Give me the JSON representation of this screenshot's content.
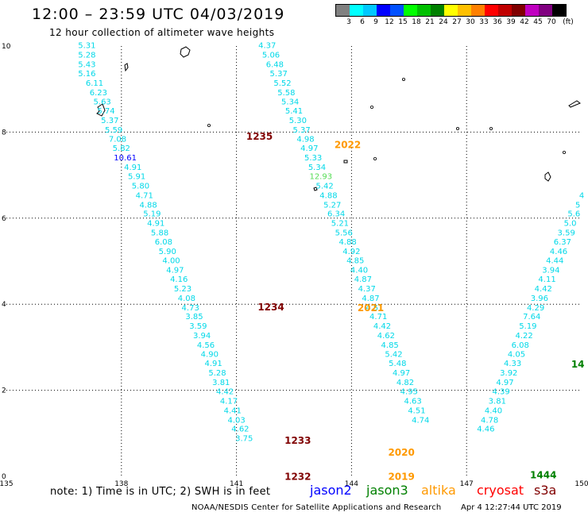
{
  "header": {
    "title": "12:00 – 23:59 UTC 04/03/2019",
    "subtitle": "12 hour collection of altimeter wave heights"
  },
  "legend": {
    "colors": [
      "#808080",
      "#00ffff",
      "#00c8ff",
      "#0000ff",
      "#0050ff",
      "#00ff00",
      "#00c000",
      "#008000",
      "#ffff00",
      "#ffc000",
      "#ff8000",
      "#ff0000",
      "#c00000",
      "#800000",
      "#c000c0",
      "#800080",
      "#000000"
    ],
    "labels": [
      "3",
      "6",
      "9",
      "12",
      "15",
      "18",
      "21",
      "24",
      "27",
      "30",
      "33",
      "36",
      "39",
      "42",
      "45",
      "70",
      "(ft)"
    ]
  },
  "map": {
    "lon_ticks": [
      "135",
      "138",
      "141",
      "144",
      "147",
      "150"
    ],
    "lat_ticks": [
      "10",
      "8",
      "6",
      "4",
      "2",
      "0"
    ],
    "lon_range": [
      135,
      150
    ],
    "lat_range": [
      0,
      10
    ],
    "tracks": [
      {
        "times": [
          {
            "label": "1235",
            "lon": 141.6,
            "lat": 7.82,
            "color": "#800000"
          },
          {
            "label": "1234",
            "lon": 141.9,
            "lat": 3.86,
            "color": "#800000"
          },
          {
            "label": "1233",
            "lon": 142.6,
            "lat": 0.76,
            "color": "#800000"
          },
          {
            "label": "1232",
            "lon": 142.6,
            "lat": -0.08,
            "color": "#800000"
          }
        ],
        "points": [
          {
            "v": "5.31",
            "lon": 137.1,
            "lat": 9.95,
            "c": "#00d8e8"
          },
          {
            "v": "5.28",
            "lon": 137.1,
            "lat": 9.73,
            "c": "#00d8e8"
          },
          {
            "v": "5.43",
            "lon": 137.1,
            "lat": 9.51,
            "c": "#00d8e8"
          },
          {
            "v": "5.16",
            "lon": 137.1,
            "lat": 9.3,
            "c": "#00d8e8"
          },
          {
            "v": "6.11",
            "lon": 137.3,
            "lat": 9.08,
            "c": "#00d8e8"
          },
          {
            "v": "6.23",
            "lon": 137.4,
            "lat": 8.86,
            "c": "#00d8e8"
          },
          {
            "v": "5.63",
            "lon": 137.5,
            "lat": 8.64,
            "c": "#00d8e8"
          },
          {
            "v": "5.74",
            "lon": 137.6,
            "lat": 8.43,
            "c": "#00d8e8"
          },
          {
            "v": "5.37",
            "lon": 137.7,
            "lat": 8.21,
            "c": "#00d8e8"
          },
          {
            "v": "5.59",
            "lon": 137.8,
            "lat": 7.99,
            "c": "#00d8e8"
          },
          {
            "v": "7.08",
            "lon": 137.9,
            "lat": 7.78,
            "c": "#00d8e8"
          },
          {
            "v": "5.82",
            "lon": 138.0,
            "lat": 7.56,
            "c": "#00d8e8"
          },
          {
            "v": "10.61",
            "lon": 138.1,
            "lat": 7.34,
            "c": "#0000ff"
          },
          {
            "v": "4.91",
            "lon": 138.3,
            "lat": 7.12,
            "c": "#00d8e8"
          },
          {
            "v": "5.91",
            "lon": 138.4,
            "lat": 6.91,
            "c": "#00d8e8"
          },
          {
            "v": "5.80",
            "lon": 138.5,
            "lat": 6.69,
            "c": "#00d8e8"
          },
          {
            "v": "4.71",
            "lon": 138.6,
            "lat": 6.47,
            "c": "#00d8e8"
          },
          {
            "v": "4.88",
            "lon": 138.7,
            "lat": 6.25,
            "c": "#00d8e8"
          },
          {
            "v": "5.19",
            "lon": 138.8,
            "lat": 6.04,
            "c": "#00d8e8"
          },
          {
            "v": "4.91",
            "lon": 138.9,
            "lat": 5.82,
            "c": "#00d8e8"
          },
          {
            "v": "5.88",
            "lon": 139.0,
            "lat": 5.6,
            "c": "#00d8e8"
          },
          {
            "v": "6.08",
            "lon": 139.1,
            "lat": 5.39,
            "c": "#00d8e8"
          },
          {
            "v": "5.90",
            "lon": 139.2,
            "lat": 5.17,
            "c": "#00d8e8"
          },
          {
            "v": "4.00",
            "lon": 139.3,
            "lat": 4.95,
            "c": "#00d8e8"
          },
          {
            "v": "4.97",
            "lon": 139.4,
            "lat": 4.73,
            "c": "#00d8e8"
          },
          {
            "v": "4.16",
            "lon": 139.5,
            "lat": 4.52,
            "c": "#00d8e8"
          },
          {
            "v": "5.23",
            "lon": 139.6,
            "lat": 4.3,
            "c": "#00d8e8"
          },
          {
            "v": "4.08",
            "lon": 139.7,
            "lat": 4.08,
            "c": "#00d8e8"
          },
          {
            "v": "4.73",
            "lon": 139.8,
            "lat": 3.86,
            "c": "#00d8e8"
          },
          {
            "v": "3.85",
            "lon": 139.9,
            "lat": 3.65,
            "c": "#00d8e8"
          },
          {
            "v": "3.59",
            "lon": 140.0,
            "lat": 3.43,
            "c": "#00d8e8"
          },
          {
            "v": "3.94",
            "lon": 140.1,
            "lat": 3.21,
            "c": "#00d8e8"
          },
          {
            "v": "4.56",
            "lon": 140.2,
            "lat": 2.99,
            "c": "#00d8e8"
          },
          {
            "v": "4.90",
            "lon": 140.3,
            "lat": 2.78,
            "c": "#00d8e8"
          },
          {
            "v": "4.91",
            "lon": 140.4,
            "lat": 2.56,
            "c": "#00d8e8"
          },
          {
            "v": "5.28",
            "lon": 140.5,
            "lat": 2.34,
            "c": "#00d8e8"
          },
          {
            "v": "3.81",
            "lon": 140.6,
            "lat": 2.12,
            "c": "#00d8e8"
          },
          {
            "v": "4.42",
            "lon": 140.7,
            "lat": 1.91,
            "c": "#00d8e8"
          },
          {
            "v": "4.17",
            "lon": 140.8,
            "lat": 1.69,
            "c": "#00d8e8"
          },
          {
            "v": "4.41",
            "lon": 140.9,
            "lat": 1.47,
            "c": "#00d8e8"
          },
          {
            "v": "4.03",
            "lon": 141.0,
            "lat": 1.25,
            "c": "#00d8e8"
          },
          {
            "v": "4.62",
            "lon": 141.1,
            "lat": 1.04,
            "c": "#00d8e8"
          },
          {
            "v": "3.75",
            "lon": 141.2,
            "lat": 0.82,
            "c": "#00d8e8"
          }
        ]
      },
      {
        "times": [
          {
            "label": "2022",
            "lon": 143.9,
            "lat": 7.63,
            "color": "#ff9900"
          },
          {
            "label": "2021",
            "lon": 144.5,
            "lat": 3.84,
            "color": "#ff9900"
          },
          {
            "label": "2020",
            "lon": 145.3,
            "lat": 0.48,
            "color": "#ff9900"
          },
          {
            "label": "2019",
            "lon": 145.3,
            "lat": -0.08,
            "color": "#ff9900"
          }
        ],
        "points": [
          {
            "v": "4.37",
            "lon": 141.8,
            "lat": 9.95,
            "c": "#00d8e8"
          },
          {
            "v": "5.06",
            "lon": 141.9,
            "lat": 9.73,
            "c": "#00d8e8"
          },
          {
            "v": "6.48",
            "lon": 142.0,
            "lat": 9.51,
            "c": "#00d8e8"
          },
          {
            "v": "5.37",
            "lon": 142.1,
            "lat": 9.3,
            "c": "#00d8e8"
          },
          {
            "v": "5.52",
            "lon": 142.2,
            "lat": 9.08,
            "c": "#00d8e8"
          },
          {
            "v": "5.58",
            "lon": 142.3,
            "lat": 8.86,
            "c": "#00d8e8"
          },
          {
            "v": "5.34",
            "lon": 142.4,
            "lat": 8.64,
            "c": "#00d8e8"
          },
          {
            "v": "5.41",
            "lon": 142.5,
            "lat": 8.43,
            "c": "#00d8e8"
          },
          {
            "v": "5.30",
            "lon": 142.6,
            "lat": 8.21,
            "c": "#00d8e8"
          },
          {
            "v": "5.37",
            "lon": 142.7,
            "lat": 7.99,
            "c": "#00d8e8"
          },
          {
            "v": "4.98",
            "lon": 142.8,
            "lat": 7.78,
            "c": "#00d8e8"
          },
          {
            "v": "4.97",
            "lon": 142.9,
            "lat": 7.56,
            "c": "#00d8e8"
          },
          {
            "v": "5.33",
            "lon": 143.0,
            "lat": 7.34,
            "c": "#00d8e8"
          },
          {
            "v": "5.34",
            "lon": 143.1,
            "lat": 7.12,
            "c": "#00d8e8"
          },
          {
            "v": "12.93",
            "lon": 143.2,
            "lat": 6.91,
            "c": "#55dd55"
          },
          {
            "v": "5.42",
            "lon": 143.3,
            "lat": 6.69,
            "c": "#00d8e8"
          },
          {
            "v": "4.88",
            "lon": 143.4,
            "lat": 6.47,
            "c": "#00d8e8"
          },
          {
            "v": "5.27",
            "lon": 143.5,
            "lat": 6.25,
            "c": "#00d8e8"
          },
          {
            "v": "6.34",
            "lon": 143.6,
            "lat": 6.04,
            "c": "#00d8e8"
          },
          {
            "v": "5.21",
            "lon": 143.7,
            "lat": 5.82,
            "c": "#00d8e8"
          },
          {
            "v": "5.56",
            "lon": 143.8,
            "lat": 5.6,
            "c": "#00d8e8"
          },
          {
            "v": "4.88",
            "lon": 143.9,
            "lat": 5.39,
            "c": "#00d8e8"
          },
          {
            "v": "4.92",
            "lon": 144.0,
            "lat": 5.17,
            "c": "#00d8e8"
          },
          {
            "v": "4.85",
            "lon": 144.1,
            "lat": 4.95,
            "c": "#00d8e8"
          },
          {
            "v": "4.40",
            "lon": 144.2,
            "lat": 4.73,
            "c": "#00d8e8"
          },
          {
            "v": "4.87",
            "lon": 144.3,
            "lat": 4.52,
            "c": "#00d8e8"
          },
          {
            "v": "4.37",
            "lon": 144.4,
            "lat": 4.3,
            "c": "#00d8e8"
          },
          {
            "v": "4.87",
            "lon": 144.5,
            "lat": 4.08,
            "c": "#00d8e8"
          },
          {
            "v": "4.51",
            "lon": 144.6,
            "lat": 3.86,
            "c": "#00d8e8"
          },
          {
            "v": "4.71",
            "lon": 144.7,
            "lat": 3.65,
            "c": "#00d8e8"
          },
          {
            "v": "4.42",
            "lon": 144.8,
            "lat": 3.43,
            "c": "#00d8e8"
          },
          {
            "v": "4.62",
            "lon": 144.9,
            "lat": 3.21,
            "c": "#00d8e8"
          },
          {
            "v": "4.85",
            "lon": 145.0,
            "lat": 2.99,
            "c": "#00d8e8"
          },
          {
            "v": "5.42",
            "lon": 145.1,
            "lat": 2.78,
            "c": "#00d8e8"
          },
          {
            "v": "5.48",
            "lon": 145.2,
            "lat": 2.56,
            "c": "#00d8e8"
          },
          {
            "v": "4.97",
            "lon": 145.3,
            "lat": 2.34,
            "c": "#00d8e8"
          },
          {
            "v": "4.82",
            "lon": 145.4,
            "lat": 2.12,
            "c": "#00d8e8"
          },
          {
            "v": "4.95",
            "lon": 145.5,
            "lat": 1.91,
            "c": "#00d8e8"
          },
          {
            "v": "4.63",
            "lon": 145.6,
            "lat": 1.69,
            "c": "#00d8e8"
          },
          {
            "v": "4.51",
            "lon": 145.7,
            "lat": 1.47,
            "c": "#00d8e8"
          },
          {
            "v": "4.74",
            "lon": 145.8,
            "lat": 1.25,
            "c": "#00d8e8"
          }
        ]
      },
      {
        "times": [
          {
            "label": "1444",
            "lon": 149.0,
            "lat": -0.05,
            "color": "#008000"
          },
          {
            "label": "14",
            "lon": 149.9,
            "lat": 2.53,
            "color": "#008000"
          }
        ],
        "points": [
          {
            "v": "4",
            "lon": 150.0,
            "lat": 6.47,
            "c": "#00d8e8"
          },
          {
            "v": "5",
            "lon": 149.9,
            "lat": 6.25,
            "c": "#00d8e8"
          },
          {
            "v": "5.6",
            "lon": 149.8,
            "lat": 6.04,
            "c": "#00d8e8"
          },
          {
            "v": "5.0",
            "lon": 149.7,
            "lat": 5.82,
            "c": "#00d8e8"
          },
          {
            "v": "3.59",
            "lon": 149.6,
            "lat": 5.6,
            "c": "#00d8e8"
          },
          {
            "v": "6.37",
            "lon": 149.5,
            "lat": 5.39,
            "c": "#00d8e8"
          },
          {
            "v": "4.46",
            "lon": 149.4,
            "lat": 5.17,
            "c": "#00d8e8"
          },
          {
            "v": "4.44",
            "lon": 149.3,
            "lat": 4.95,
            "c": "#00d8e8"
          },
          {
            "v": "3.94",
            "lon": 149.2,
            "lat": 4.73,
            "c": "#00d8e8"
          },
          {
            "v": "4.11",
            "lon": 149.1,
            "lat": 4.52,
            "c": "#00d8e8"
          },
          {
            "v": "4.42",
            "lon": 149.0,
            "lat": 4.3,
            "c": "#00d8e8"
          },
          {
            "v": "3.96",
            "lon": 148.9,
            "lat": 4.08,
            "c": "#00d8e8"
          },
          {
            "v": "4.29",
            "lon": 148.8,
            "lat": 3.86,
            "c": "#00d8e8"
          },
          {
            "v": "7.64",
            "lon": 148.7,
            "lat": 3.65,
            "c": "#00d8e8"
          },
          {
            "v": "5.19",
            "lon": 148.6,
            "lat": 3.43,
            "c": "#00d8e8"
          },
          {
            "v": "4.22",
            "lon": 148.5,
            "lat": 3.21,
            "c": "#00d8e8"
          },
          {
            "v": "6.08",
            "lon": 148.4,
            "lat": 2.99,
            "c": "#00d8e8"
          },
          {
            "v": "4.05",
            "lon": 148.3,
            "lat": 2.78,
            "c": "#00d8e8"
          },
          {
            "v": "4.33",
            "lon": 148.2,
            "lat": 2.56,
            "c": "#00d8e8"
          },
          {
            "v": "3.92",
            "lon": 148.1,
            "lat": 2.34,
            "c": "#00d8e8"
          },
          {
            "v": "4.97",
            "lon": 148.0,
            "lat": 2.12,
            "c": "#00d8e8"
          },
          {
            "v": "4.39",
            "lon": 147.9,
            "lat": 1.91,
            "c": "#00d8e8"
          },
          {
            "v": "3.81",
            "lon": 147.8,
            "lat": 1.69,
            "c": "#00d8e8"
          },
          {
            "v": "4.40",
            "lon": 147.7,
            "lat": 1.47,
            "c": "#00d8e8"
          },
          {
            "v": "4.78",
            "lon": 147.6,
            "lat": 1.25,
            "c": "#00d8e8"
          },
          {
            "v": "4.46",
            "lon": 147.5,
            "lat": 1.04,
            "c": "#00d8e8"
          }
        ]
      }
    ]
  },
  "footer": {
    "note": "note: 1) Time is in UTC; 2) SWH is in feet",
    "satellites": [
      {
        "name": "jason2",
        "color": "#0000ff"
      },
      {
        "name": "jason3",
        "color": "#008000"
      },
      {
        "name": "altika",
        "color": "#ff9900"
      },
      {
        "name": "cryosat",
        "color": "#ff0000"
      },
      {
        "name": "s3a",
        "color": "#800000"
      }
    ],
    "credit": "NOAA/NESDIS Center for Satellite Applications and Research",
    "generated": "Apr  4 12:27:44 UTC 2019"
  }
}
